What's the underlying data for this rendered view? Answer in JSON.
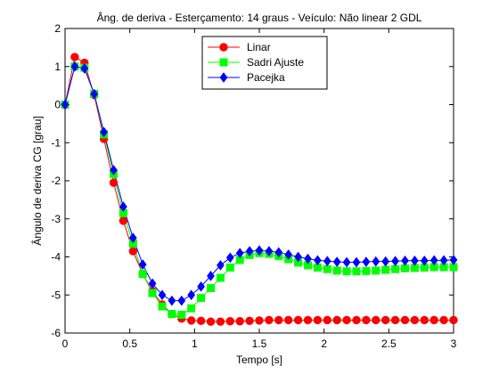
{
  "chart_data": {
    "type": "line",
    "title": "Âng. de deriva - Esterçamento: 14 graus - Veículo: Não linear 2 GDL",
    "xlabel": "Tempo [s]",
    "ylabel": "Ângulo de deriva CG [grau]",
    "xlim": [
      0,
      3
    ],
    "ylim": [
      -6,
      2
    ],
    "xticks": [
      0,
      0.5,
      1,
      1.5,
      2,
      2.5,
      3
    ],
    "xtick_labels": [
      "0",
      "0.5",
      "1",
      "1.5",
      "2",
      "2.5",
      "3"
    ],
    "yticks": [
      2,
      1,
      0,
      -1,
      -2,
      -3,
      -4,
      -5,
      -6
    ],
    "ytick_labels": [
      "2",
      "1",
      "0",
      "-1",
      "-2",
      "-3",
      "-4",
      "-5",
      "-6"
    ],
    "grid": false,
    "legend_position": "top-center",
    "x": [
      0,
      0.075,
      0.15,
      0.225,
      0.3,
      0.375,
      0.45,
      0.525,
      0.6,
      0.675,
      0.75,
      0.825,
      0.9,
      0.975,
      1.05,
      1.125,
      1.2,
      1.275,
      1.35,
      1.425,
      1.5,
      1.575,
      1.65,
      1.725,
      1.8,
      1.875,
      1.95,
      2.025,
      2.1,
      2.175,
      2.25,
      2.325,
      2.4,
      2.475,
      2.55,
      2.625,
      2.7,
      2.775,
      2.85,
      2.925,
      3.0
    ],
    "series": [
      {
        "name": "Linar",
        "color": "#ff0000",
        "marker": "circle",
        "values": [
          0,
          1.25,
          1.1,
          0.25,
          -0.9,
          -2.05,
          -3.05,
          -3.85,
          -4.45,
          -4.9,
          -5.25,
          -5.5,
          -5.62,
          -5.67,
          -5.68,
          -5.7,
          -5.7,
          -5.69,
          -5.69,
          -5.68,
          -5.67,
          -5.66,
          -5.66,
          -5.66,
          -5.66,
          -5.66,
          -5.66,
          -5.66,
          -5.66,
          -5.66,
          -5.66,
          -5.66,
          -5.66,
          -5.66,
          -5.66,
          -5.66,
          -5.66,
          -5.66,
          -5.66,
          -5.66,
          -5.66
        ]
      },
      {
        "name": "Sadri Ajuste",
        "color": "#00ff00",
        "marker": "square",
        "values": [
          0,
          1.0,
          0.97,
          0.28,
          -0.78,
          -1.82,
          -2.85,
          -3.65,
          -4.45,
          -4.95,
          -5.3,
          -5.5,
          -5.52,
          -5.35,
          -5.08,
          -4.82,
          -4.55,
          -4.28,
          -4.08,
          -3.95,
          -3.9,
          -3.92,
          -3.98,
          -4.06,
          -4.15,
          -4.22,
          -4.28,
          -4.32,
          -4.36,
          -4.38,
          -4.38,
          -4.37,
          -4.36,
          -4.34,
          -4.32,
          -4.3,
          -4.29,
          -4.28,
          -4.27,
          -4.27,
          -4.27
        ]
      },
      {
        "name": "Pacejka",
        "color": "#0000ff",
        "marker": "diamond",
        "values": [
          0,
          1.0,
          0.95,
          0.28,
          -0.72,
          -1.72,
          -2.68,
          -3.5,
          -4.2,
          -4.7,
          -5.0,
          -5.15,
          -5.15,
          -5.0,
          -4.78,
          -4.5,
          -4.22,
          -4.02,
          -3.9,
          -3.85,
          -3.83,
          -3.85,
          -3.88,
          -3.94,
          -4.0,
          -4.05,
          -4.09,
          -4.11,
          -4.13,
          -4.14,
          -4.14,
          -4.13,
          -4.12,
          -4.12,
          -4.11,
          -4.1,
          -4.1,
          -4.1,
          -4.09,
          -4.09,
          -4.08
        ]
      }
    ]
  }
}
